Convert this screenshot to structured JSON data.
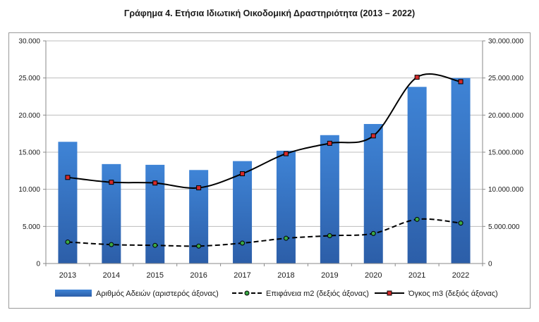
{
  "title": "Γράφημα 4. Ετήσια Ιδιωτική Οικοδομική Δραστηριότητα (2013 – 2022)",
  "chart_data": {
    "type": "bar",
    "categories": [
      "2013",
      "2014",
      "2015",
      "2016",
      "2017",
      "2018",
      "2019",
      "2020",
      "2021",
      "2022"
    ],
    "left_axis": {
      "ylim": [
        0,
        30000
      ],
      "ticks": [
        "0",
        "5.000",
        "10.000",
        "15.000",
        "20.000",
        "25.000",
        "30.000"
      ]
    },
    "right_axis": {
      "ylim": [
        0,
        30000000
      ],
      "ticks": [
        "0",
        "5.000.000",
        "10.000.000",
        "15.000.000",
        "20.000.000",
        "25.000.000",
        "30.000.000"
      ]
    },
    "series": [
      {
        "name": "Αριθμός Αδειών (αριστερός άξονας)",
        "type": "bar",
        "axis": "left",
        "color": "#3a78c9",
        "values": [
          16400,
          13400,
          13300,
          12600,
          13800,
          15200,
          17300,
          18800,
          23800,
          25000
        ]
      },
      {
        "name": "Επιφάνεια m2 (δεξιός άξονας)",
        "type": "line",
        "axis": "right",
        "style": "dashed",
        "marker_color": "#3aa845",
        "values": [
          2900000,
          2550000,
          2450000,
          2350000,
          2750000,
          3400000,
          3750000,
          4050000,
          5950000,
          5450000
        ]
      },
      {
        "name": "Όγκος m3 (δεξιός άξονας)",
        "type": "line",
        "axis": "right",
        "style": "solid",
        "marker_color": "#d42a2a",
        "values": [
          11600000,
          10950000,
          10850000,
          10200000,
          12100000,
          14800000,
          16200000,
          17200000,
          25100000,
          24500000
        ]
      }
    ],
    "grid": true,
    "legend_position": "bottom"
  }
}
